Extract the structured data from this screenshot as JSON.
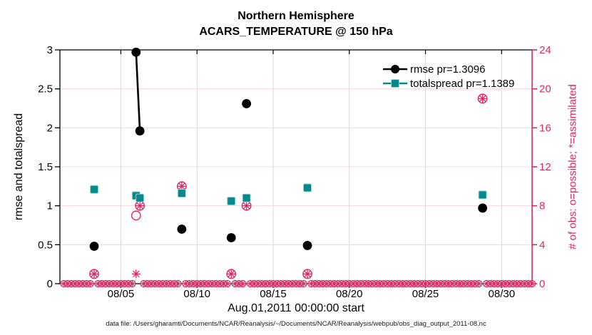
{
  "header": {
    "title_line1": "Northern Hemisphere",
    "title_line2": "ACARS_TEMPERATURE @ 150 hPa"
  },
  "footer": {
    "caption": "data file: /Users/gharamti/Documents/NCAR/Reanalysis/~/Documents/NCAR/Reanalysis/webpub/obs_diag_output_2011-08.nc"
  },
  "colors": {
    "rmse": "#000000",
    "totalspread": "#048a8a",
    "totalspread_edge": "#9fd2ce",
    "obs_accent": "#d62a66",
    "grid_horizontal": "#f6d9e0",
    "grid_vertical": "#d9d9d9"
  },
  "chart_data": {
    "type": "line",
    "title": "Northern Hemisphere",
    "subtitle": "ACARS_TEMPERATURE @ 150 hPa",
    "x_axis": {
      "label": "Aug.01,2011 00:00:00 start",
      "range_days": [
        0,
        31
      ],
      "tick_days": [
        4,
        9,
        14,
        19,
        24,
        29
      ],
      "tick_labels": [
        "08/05",
        "08/10",
        "08/15",
        "08/20",
        "08/25",
        "08/30"
      ]
    },
    "y_left": {
      "label": "rmse and totalspread",
      "range": [
        0,
        3
      ],
      "ticks": [
        0,
        0.5,
        1,
        1.5,
        2,
        2.5,
        3
      ],
      "tick_labels": [
        "0",
        "0.5",
        "1",
        "1.5",
        "2",
        "2.5",
        "3"
      ]
    },
    "y_right": {
      "label": "# of obs: o=possible; *=assimilated",
      "range": [
        0,
        24
      ],
      "ticks": [
        0,
        4,
        8,
        12,
        16,
        20,
        24
      ],
      "tick_labels": [
        "0",
        "4",
        "8",
        "12",
        "16",
        "20",
        "24"
      ]
    },
    "legend": [
      {
        "label": "rmse pr=1.3096",
        "marker": "circle",
        "color": "#000000"
      },
      {
        "label": "totalspread pr=1.1389",
        "marker": "square",
        "color": "#048a8a"
      }
    ],
    "series": {
      "rmse": {
        "name": "rmse",
        "marker": "filled-circle",
        "points": [
          [
            2.25,
            0.48
          ],
          [
            5.0,
            2.97
          ],
          [
            5.25,
            1.96
          ],
          [
            8.0,
            0.7
          ],
          [
            11.25,
            0.59
          ],
          [
            12.25,
            2.31
          ],
          [
            16.25,
            0.49
          ],
          [
            27.75,
            0.97
          ]
        ]
      },
      "totalspread": {
        "name": "totalspread",
        "marker": "filled-square",
        "points": [
          [
            2.25,
            1.21
          ],
          [
            5.0,
            1.13
          ],
          [
            5.25,
            1.1
          ],
          [
            8.0,
            1.16
          ],
          [
            11.25,
            1.06
          ],
          [
            12.25,
            1.1
          ],
          [
            16.25,
            1.23
          ],
          [
            27.75,
            1.14
          ]
        ]
      },
      "obs_possible": {
        "name": "# of obs possible",
        "marker": "open-circle",
        "axis": "right",
        "points": [
          [
            2.25,
            1
          ],
          [
            5.0,
            7
          ],
          [
            5.25,
            8
          ],
          [
            8.0,
            10
          ],
          [
            11.25,
            1
          ],
          [
            12.25,
            8
          ],
          [
            16.25,
            1
          ],
          [
            27.75,
            19
          ]
        ]
      },
      "obs_assimilated": {
        "name": "# of obs assimilated",
        "marker": "asterisk",
        "axis": "right",
        "points": [
          [
            2.25,
            1
          ],
          [
            5.0,
            1
          ],
          [
            5.25,
            8
          ],
          [
            8.0,
            10
          ],
          [
            11.25,
            1
          ],
          [
            12.25,
            8
          ],
          [
            16.25,
            1
          ],
          [
            27.75,
            19
          ]
        ]
      },
      "obs_zero_row": {
        "name": "obs counts at zero (possible and assimilated)",
        "marker": "circle-plus-asterisk",
        "axis": "right",
        "value": 0,
        "start_day": 0.25,
        "end_day": 31.0,
        "step_day": 0.25
      }
    }
  }
}
